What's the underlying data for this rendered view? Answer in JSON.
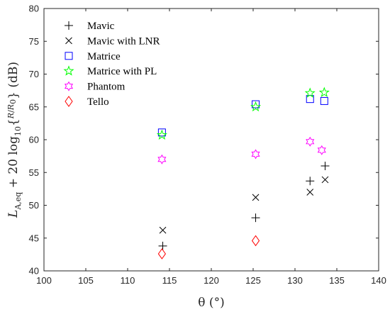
{
  "chart_data": {
    "type": "scatter",
    "xlabel": "θ (°)",
    "ylabel": "L_A,eq + 20 log10{R/R0} (dB)",
    "xlim": [
      100,
      140
    ],
    "ylim": [
      40,
      80
    ],
    "xticks": [
      "100",
      "105",
      "110",
      "115",
      "120",
      "125",
      "130",
      "135",
      "140"
    ],
    "yticks": [
      "40",
      "45",
      "50",
      "55",
      "60",
      "65",
      "70",
      "75",
      "80"
    ],
    "grid": false,
    "legend_position": "top-left",
    "series": [
      {
        "name": "Mavic",
        "marker": "plus",
        "color": "#000000",
        "x": [
          114.2,
          125.3,
          131.8,
          133.6
        ],
        "y": [
          43.8,
          48.1,
          53.7,
          56.0
        ]
      },
      {
        "name": "Mavic with LNR",
        "marker": "x",
        "color": "#000000",
        "x": [
          114.2,
          125.3,
          131.8,
          133.6
        ],
        "y": [
          46.2,
          51.2,
          52.0,
          53.9
        ]
      },
      {
        "name": "Matrice",
        "marker": "square",
        "color": "#0000ff",
        "x": [
          114.1,
          125.3,
          131.8,
          133.5
        ],
        "y": [
          61.1,
          65.4,
          66.2,
          65.9
        ]
      },
      {
        "name": "Matrice with PL",
        "marker": "pentagram",
        "color": "#00ff00",
        "x": [
          114.1,
          125.3,
          131.8,
          133.5
        ],
        "y": [
          60.7,
          65.0,
          67.1,
          67.2
        ]
      },
      {
        "name": "Phantom",
        "marker": "hexagram",
        "color": "#ff00ff",
        "x": [
          114.1,
          125.3,
          131.8,
          133.2
        ],
        "y": [
          57.0,
          57.8,
          59.7,
          58.4
        ]
      },
      {
        "name": "Tello",
        "marker": "diamond",
        "color": "#ff0000",
        "x": [
          114.1,
          125.3
        ],
        "y": [
          42.6,
          44.6
        ]
      }
    ]
  }
}
